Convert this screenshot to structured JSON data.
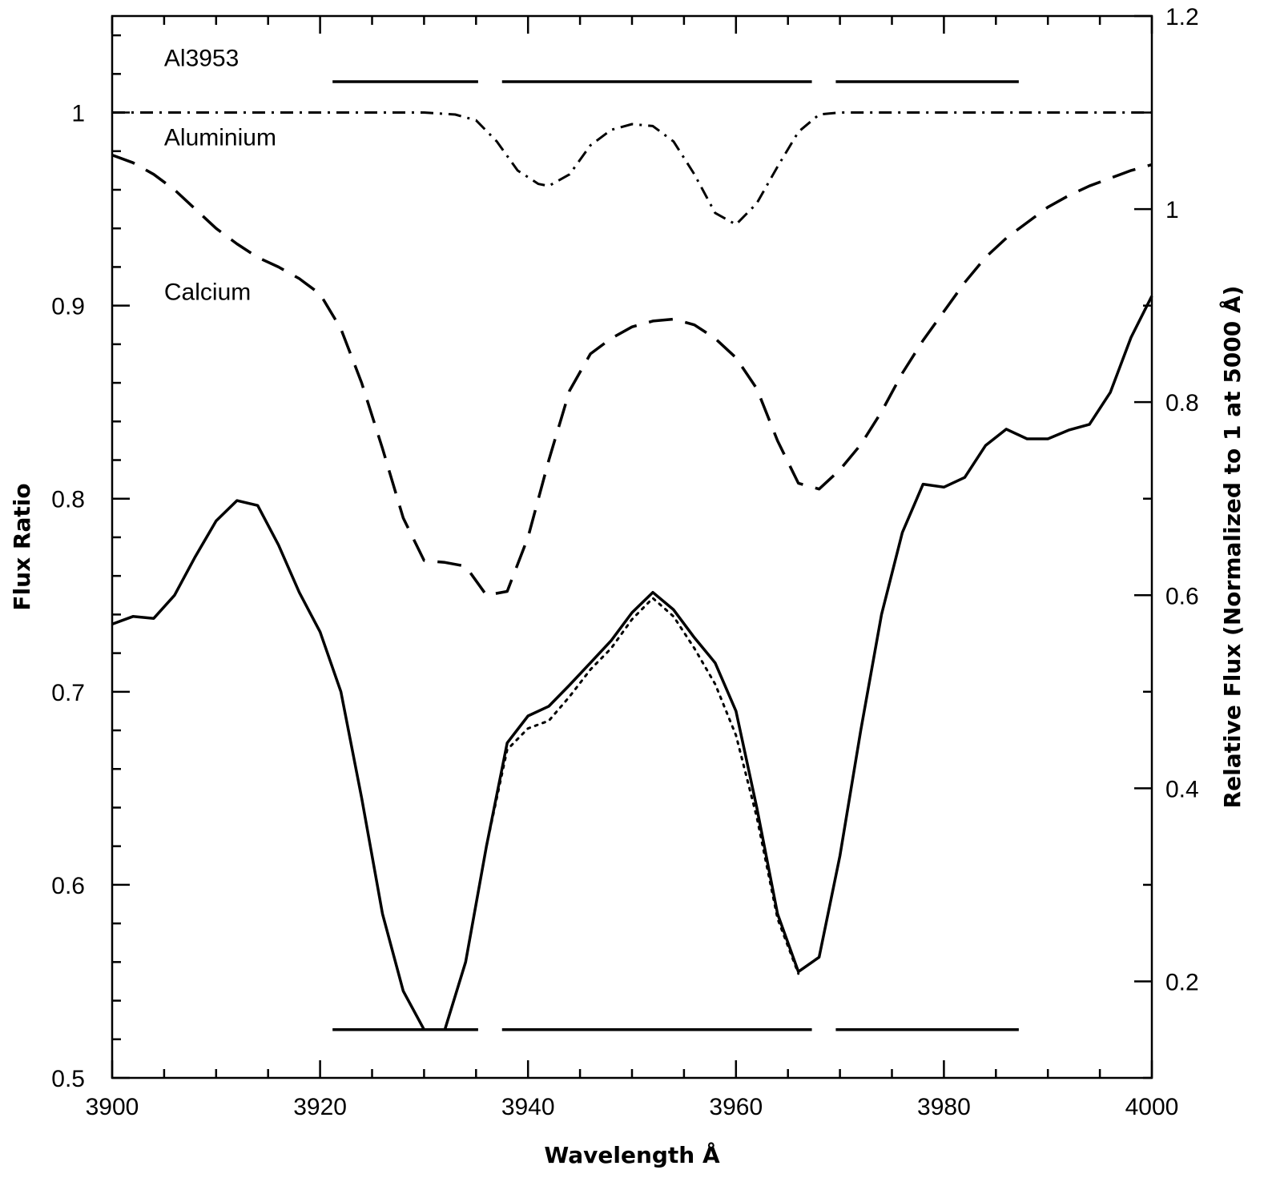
{
  "chart_data": {
    "type": "line",
    "title": "",
    "xlabel": "Wavelength Å",
    "ylabel": "Flux Ratio",
    "y2label": "Relative Flux (Normalized to 1 at 5000 Å)",
    "xlim": [
      3900,
      4000
    ],
    "ylim": [
      0.5,
      1.05
    ],
    "y2lim": [
      0.1,
      1.2
    ],
    "grid": false,
    "x_ticks": [
      3900,
      3920,
      3940,
      3960,
      3980,
      4000
    ],
    "x_tick_labels": [
      "3900",
      "3920",
      "3940",
      "3960",
      "3980",
      "4000"
    ],
    "y_ticks": [
      0.5,
      0.6,
      0.7,
      0.8,
      0.9,
      1.0
    ],
    "y_tick_labels": [
      "0.5",
      "0.6",
      "0.7",
      "0.8",
      "0.9",
      "1"
    ],
    "y2_ticks": [
      0.2,
      0.4,
      0.6,
      0.8,
      1.0,
      1.2
    ],
    "y2_tick_labels": [
      "0.2",
      "0.4",
      "0.6",
      "0.8",
      "1",
      "1.2"
    ],
    "annotations": [
      {
        "text": "Al3953",
        "x": 3905,
        "y": 1.024
      },
      {
        "text": "Aluminium",
        "x": 3905,
        "y": 0.983
      },
      {
        "text": "Calcium",
        "x": 3905,
        "y": 0.903
      }
    ],
    "bands": [
      {
        "y": 1.016,
        "ranges": [
          [
            3921.2,
            3935.2
          ],
          [
            3937.5,
            3967.3
          ],
          [
            3969.6,
            3987.2
          ]
        ]
      },
      {
        "y": 0.525,
        "ranges": [
          [
            3921.2,
            3935.2
          ],
          [
            3937.5,
            3967.3
          ],
          [
            3969.6,
            3987.2
          ]
        ]
      }
    ],
    "series": [
      {
        "style": "dash-dot",
        "axis": "left",
        "x": [
          3900,
          3905,
          3910,
          3915,
          3920,
          3925,
          3930,
          3933,
          3935,
          3937,
          3939,
          3941,
          3942,
          3944,
          3946,
          3948,
          3950,
          3952,
          3954,
          3956,
          3958,
          3960,
          3962,
          3964,
          3966,
          3968,
          3970,
          3975,
          3980,
          3985,
          3990,
          3995,
          4000
        ],
        "y": [
          1.0,
          1.0,
          1.0,
          1.0,
          1.0,
          1.0,
          1.0,
          0.999,
          0.996,
          0.985,
          0.97,
          0.963,
          0.962,
          0.968,
          0.983,
          0.991,
          0.994,
          0.993,
          0.985,
          0.968,
          0.948,
          0.942,
          0.953,
          0.972,
          0.99,
          0.999,
          1.0,
          1.0,
          1.0,
          1.0,
          1.0,
          1.0,
          1.0
        ]
      },
      {
        "style": "long-dash",
        "axis": "left",
        "x": [
          3900,
          3902,
          3904,
          3906,
          3908,
          3910,
          3912,
          3914,
          3916,
          3918,
          3920,
          3922,
          3924,
          3926,
          3928,
          3930,
          3932,
          3934,
          3936,
          3938,
          3940,
          3942,
          3944,
          3946,
          3948,
          3950,
          3952,
          3954,
          3956,
          3958,
          3960,
          3962,
          3964,
          3966,
          3968,
          3970,
          3972,
          3974,
          3976,
          3978,
          3980,
          3982,
          3984,
          3986,
          3988,
          3990,
          3992,
          3994,
          3996,
          3998,
          4000
        ],
        "y": [
          0.978,
          0.974,
          0.968,
          0.96,
          0.95,
          0.94,
          0.932,
          0.925,
          0.92,
          0.914,
          0.906,
          0.888,
          0.86,
          0.826,
          0.79,
          0.768,
          0.767,
          0.765,
          0.75,
          0.752,
          0.78,
          0.82,
          0.856,
          0.875,
          0.883,
          0.889,
          0.892,
          0.893,
          0.89,
          0.883,
          0.873,
          0.857,
          0.83,
          0.808,
          0.805,
          0.815,
          0.828,
          0.845,
          0.865,
          0.882,
          0.897,
          0.912,
          0.925,
          0.935,
          0.943,
          0.951,
          0.957,
          0.962,
          0.966,
          0.97,
          0.973
        ]
      },
      {
        "style": "solid",
        "axis": "right",
        "x": [
          3900,
          3902,
          3904,
          3906,
          3908,
          3910,
          3912,
          3914,
          3916,
          3918,
          3920,
          3922,
          3924,
          3926,
          3928,
          3930,
          3932,
          3934,
          3936,
          3938,
          3940,
          3942,
          3944,
          3946,
          3948,
          3950,
          3952,
          3954,
          3956,
          3958,
          3960,
          3962,
          3964,
          3966,
          3968,
          3970,
          3972,
          3974,
          3976,
          3978,
          3980,
          3982,
          3984,
          3986,
          3988,
          3990,
          3992,
          3994,
          3996,
          3998,
          4000
        ],
        "y": [
          0.57,
          0.578,
          0.576,
          0.6,
          0.64,
          0.677,
          0.698,
          0.693,
          0.652,
          0.603,
          0.562,
          0.5,
          0.39,
          0.27,
          0.19,
          0.15,
          0.15,
          0.22,
          0.34,
          0.447,
          0.475,
          0.485,
          0.507,
          0.53,
          0.553,
          0.582,
          0.603,
          0.585,
          0.556,
          0.53,
          0.48,
          0.38,
          0.27,
          0.21,
          0.225,
          0.33,
          0.46,
          0.58,
          0.665,
          0.715,
          0.712,
          0.722,
          0.755,
          0.772,
          0.762,
          0.762,
          0.771,
          0.777,
          0.81,
          0.867,
          0.91
        ]
      },
      {
        "style": "dotted",
        "axis": "right",
        "x": [
          3936,
          3938,
          3940,
          3942,
          3944,
          3946,
          3948,
          3950,
          3952,
          3954,
          3956,
          3958,
          3960,
          3962,
          3964,
          3966
        ],
        "y": [
          0.34,
          0.44,
          0.462,
          0.47,
          0.495,
          0.523,
          0.545,
          0.575,
          0.597,
          0.578,
          0.545,
          0.508,
          0.455,
          0.37,
          0.265,
          0.208
        ]
      }
    ]
  }
}
